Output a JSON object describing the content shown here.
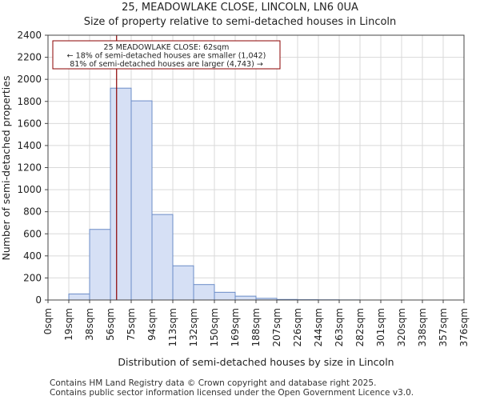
{
  "chart_data": {
    "type": "bar",
    "title": "25, MEADOWLAKE CLOSE, LINCOLN, LN6 0UA",
    "subtitle": "Size of property relative to semi-detached houses in Lincoln",
    "xlabel": "Distribution of semi-detached houses by size in Lincoln",
    "ylabel": "Number of semi-detached properties",
    "x_tick_labels": [
      "0sqm",
      "19sqm",
      "38sqm",
      "56sqm",
      "75sqm",
      "94sqm",
      "113sqm",
      "132sqm",
      "150sqm",
      "169sqm",
      "188sqm",
      "207sqm",
      "226sqm",
      "244sqm",
      "263sqm",
      "282sqm",
      "301sqm",
      "320sqm",
      "338sqm",
      "357sqm",
      "376sqm"
    ],
    "bin_edges": [
      0,
      18.8,
      37.6,
      56.4,
      75.2,
      94,
      112.8,
      131.6,
      150.4,
      169.2,
      188,
      206.8,
      225.6,
      244.4,
      263.2,
      282,
      300.8,
      319.6,
      338.4,
      357.2,
      376
    ],
    "values": [
      0,
      55,
      640,
      1920,
      1805,
      775,
      310,
      140,
      70,
      35,
      15,
      5,
      3,
      2,
      1,
      0,
      0,
      0,
      0,
      0
    ],
    "ylim": [
      0,
      2400
    ],
    "y_ticks": [
      0,
      200,
      400,
      600,
      800,
      1000,
      1200,
      1400,
      1600,
      1800,
      2000,
      2200,
      2400
    ],
    "grid": true,
    "marker": {
      "value": 62,
      "color": "#8b0000",
      "annotation_lines": [
        "25 MEADOWLAKE CLOSE: 62sqm",
        "← 18% of semi-detached houses are smaller (1,042)",
        "81% of semi-detached houses are larger (4,743) →"
      ]
    },
    "bar_fill": "#d6e0f5",
    "bar_edge": "#6b8cc7"
  },
  "footer": {
    "line1": "Contains HM Land Registry data © Crown copyright and database right 2025.",
    "line2": "Contains public sector information licensed under the Open Government Licence v3.0."
  }
}
